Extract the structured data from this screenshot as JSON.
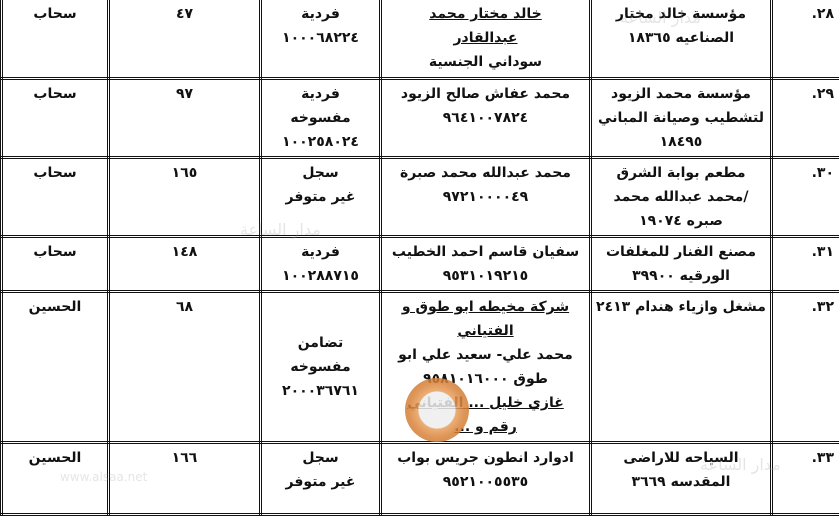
{
  "rows": [
    {
      "index": "٢٨.",
      "establishment": [
        "مؤسسة خالد مختار",
        "الصناعيه ١٨٣٦٥"
      ],
      "owner": [
        "خالد مختار محمد",
        "عبدالقادر",
        "سوداني الجنسية"
      ],
      "registration": [
        "فردية",
        "١٠٠٠٦٨٢٢٤"
      ],
      "number": "٤٧",
      "region": "سحاب"
    },
    {
      "index": "٢٩.",
      "establishment": [
        "مؤسسة محمد الزيود",
        "لتشطيب وصيانة المباني",
        "١٨٤٩٥"
      ],
      "owner": [
        "محمد عفاش صالح الزيود",
        "٩٦٤١٠٠٧٨٢٤"
      ],
      "registration": [
        "فردية",
        "مفسوخه",
        "١٠٠٢٥٨٠٢٤"
      ],
      "number": "٩٧",
      "region": "سحاب"
    },
    {
      "index": "٣٠.",
      "establishment": [
        "مطعم بوابة الشرق",
        "/محمد عبدالله محمد",
        "صبره ١٩٠٧٤"
      ],
      "owner": [
        "محمد عبدالله محمد صبرة",
        "٩٧٢١٠٠٠٠٤٩"
      ],
      "registration": [
        "سجل",
        "غير متوفر"
      ],
      "number": "١٦٥",
      "region": "سحاب"
    },
    {
      "index": "٣١.",
      "establishment": [
        "مصنع الفنار للمغلفات",
        "الورقيه ٣٩٩٠٠"
      ],
      "owner": [
        "سفيان قاسم احمد الخطيب",
        "٩٥٣١٠١٩٢١٥"
      ],
      "registration": [
        "فردية",
        "١٠٠٢٨٨٧١٥"
      ],
      "number": "١٤٨",
      "region": "سحاب"
    },
    {
      "index": "٣٢.",
      "establishment": [
        "مشغل وازياء هندام ٢٤١٣"
      ],
      "owner": [
        "شركة مخيطه ابو طوق و",
        "الفتياني",
        "محمد علي- سعيد علي ابو",
        "طوق ٩٥٨١٠١٦٠٠٠",
        "غازي خليل ... الفتياني",
        "رقم و ..."
      ],
      "registration": [
        "تضامن",
        "مفسوخه",
        "٢٠٠٠٣٦٧٦١"
      ],
      "number": "٦٨",
      "region": "الحسين"
    },
    {
      "index": "٣٣.",
      "establishment": [
        "السياحه للاراضى",
        "المقدسه ٣٦٦٩"
      ],
      "owner": [
        "ادوارد انطون جريس بواب",
        "٩٥٢١٠٠٥٥٣٥"
      ],
      "registration": [
        "سجل",
        "غير متوفر"
      ],
      "number": "١٦٦",
      "region": "الحسين"
    }
  ],
  "underlined_owner_lines": {
    "0": [
      0,
      1
    ],
    "4": [
      0,
      1,
      4,
      5
    ]
  },
  "watermark": {
    "text": "مدار الساعة",
    "url": "www.alsaa.net",
    "seal_text": "الساعة"
  }
}
